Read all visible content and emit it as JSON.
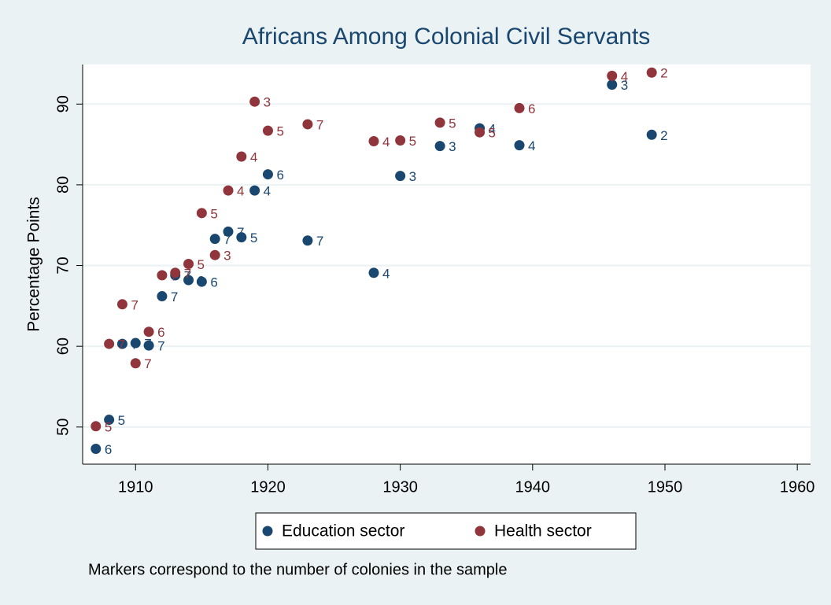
{
  "chart_data": {
    "type": "scatter",
    "title": "Africans Among Colonial Civil Servants",
    "ylabel": "Percentage Points",
    "note": "Markers correspond to the number of colonies in the sample",
    "xlim": [
      1906,
      1961
    ],
    "xticks": [
      1910,
      1920,
      1930,
      1940,
      1950,
      1960
    ],
    "ylim": [
      45.4,
      94.9
    ],
    "yticks": [
      50,
      60,
      70,
      80,
      90
    ],
    "grid": true,
    "legend": "bottom",
    "series": [
      {
        "name": "Education sector",
        "color": "#1a476f",
        "x": [
          1907,
          1908,
          1909,
          1910,
          1911,
          1912,
          1913,
          1914,
          1915,
          1916,
          1917,
          1918,
          1919,
          1920,
          1923,
          1928,
          1930,
          1933,
          1936,
          1939,
          1946,
          1949
        ],
        "values": [
          47.3,
          50.9,
          60.3,
          60.4,
          60.1,
          66.2,
          68.8,
          68.2,
          68.0,
          73.3,
          74.2,
          73.5,
          79.3,
          81.3,
          73.1,
          69.1,
          81.1,
          84.8,
          87.0,
          84.9,
          92.4,
          86.2
        ],
        "marker_labels": [
          6,
          5,
          7,
          7,
          7,
          7,
          7,
          6,
          6,
          7,
          7,
          5,
          4,
          6,
          7,
          4,
          3,
          3,
          4,
          4,
          3,
          2
        ]
      },
      {
        "name": "Health sector",
        "color": "#90353b",
        "x": [
          1907,
          1908,
          1909,
          1910,
          1911,
          1912,
          1913,
          1914,
          1915,
          1916,
          1917,
          1918,
          1919,
          1920,
          1923,
          1928,
          1930,
          1933,
          1936,
          1939,
          1946,
          1949
        ],
        "values": [
          50.1,
          60.3,
          65.2,
          57.9,
          61.8,
          68.8,
          69.1,
          70.2,
          76.5,
          71.3,
          79.3,
          83.5,
          90.3,
          86.7,
          87.5,
          85.4,
          85.5,
          87.7,
          86.5,
          89.5,
          93.5,
          93.9
        ],
        "marker_labels": [
          5,
          7,
          7,
          7,
          6,
          7,
          7,
          5,
          5,
          3,
          4,
          4,
          3,
          5,
          7,
          4,
          5,
          5,
          5,
          6,
          4,
          2
        ]
      }
    ]
  }
}
